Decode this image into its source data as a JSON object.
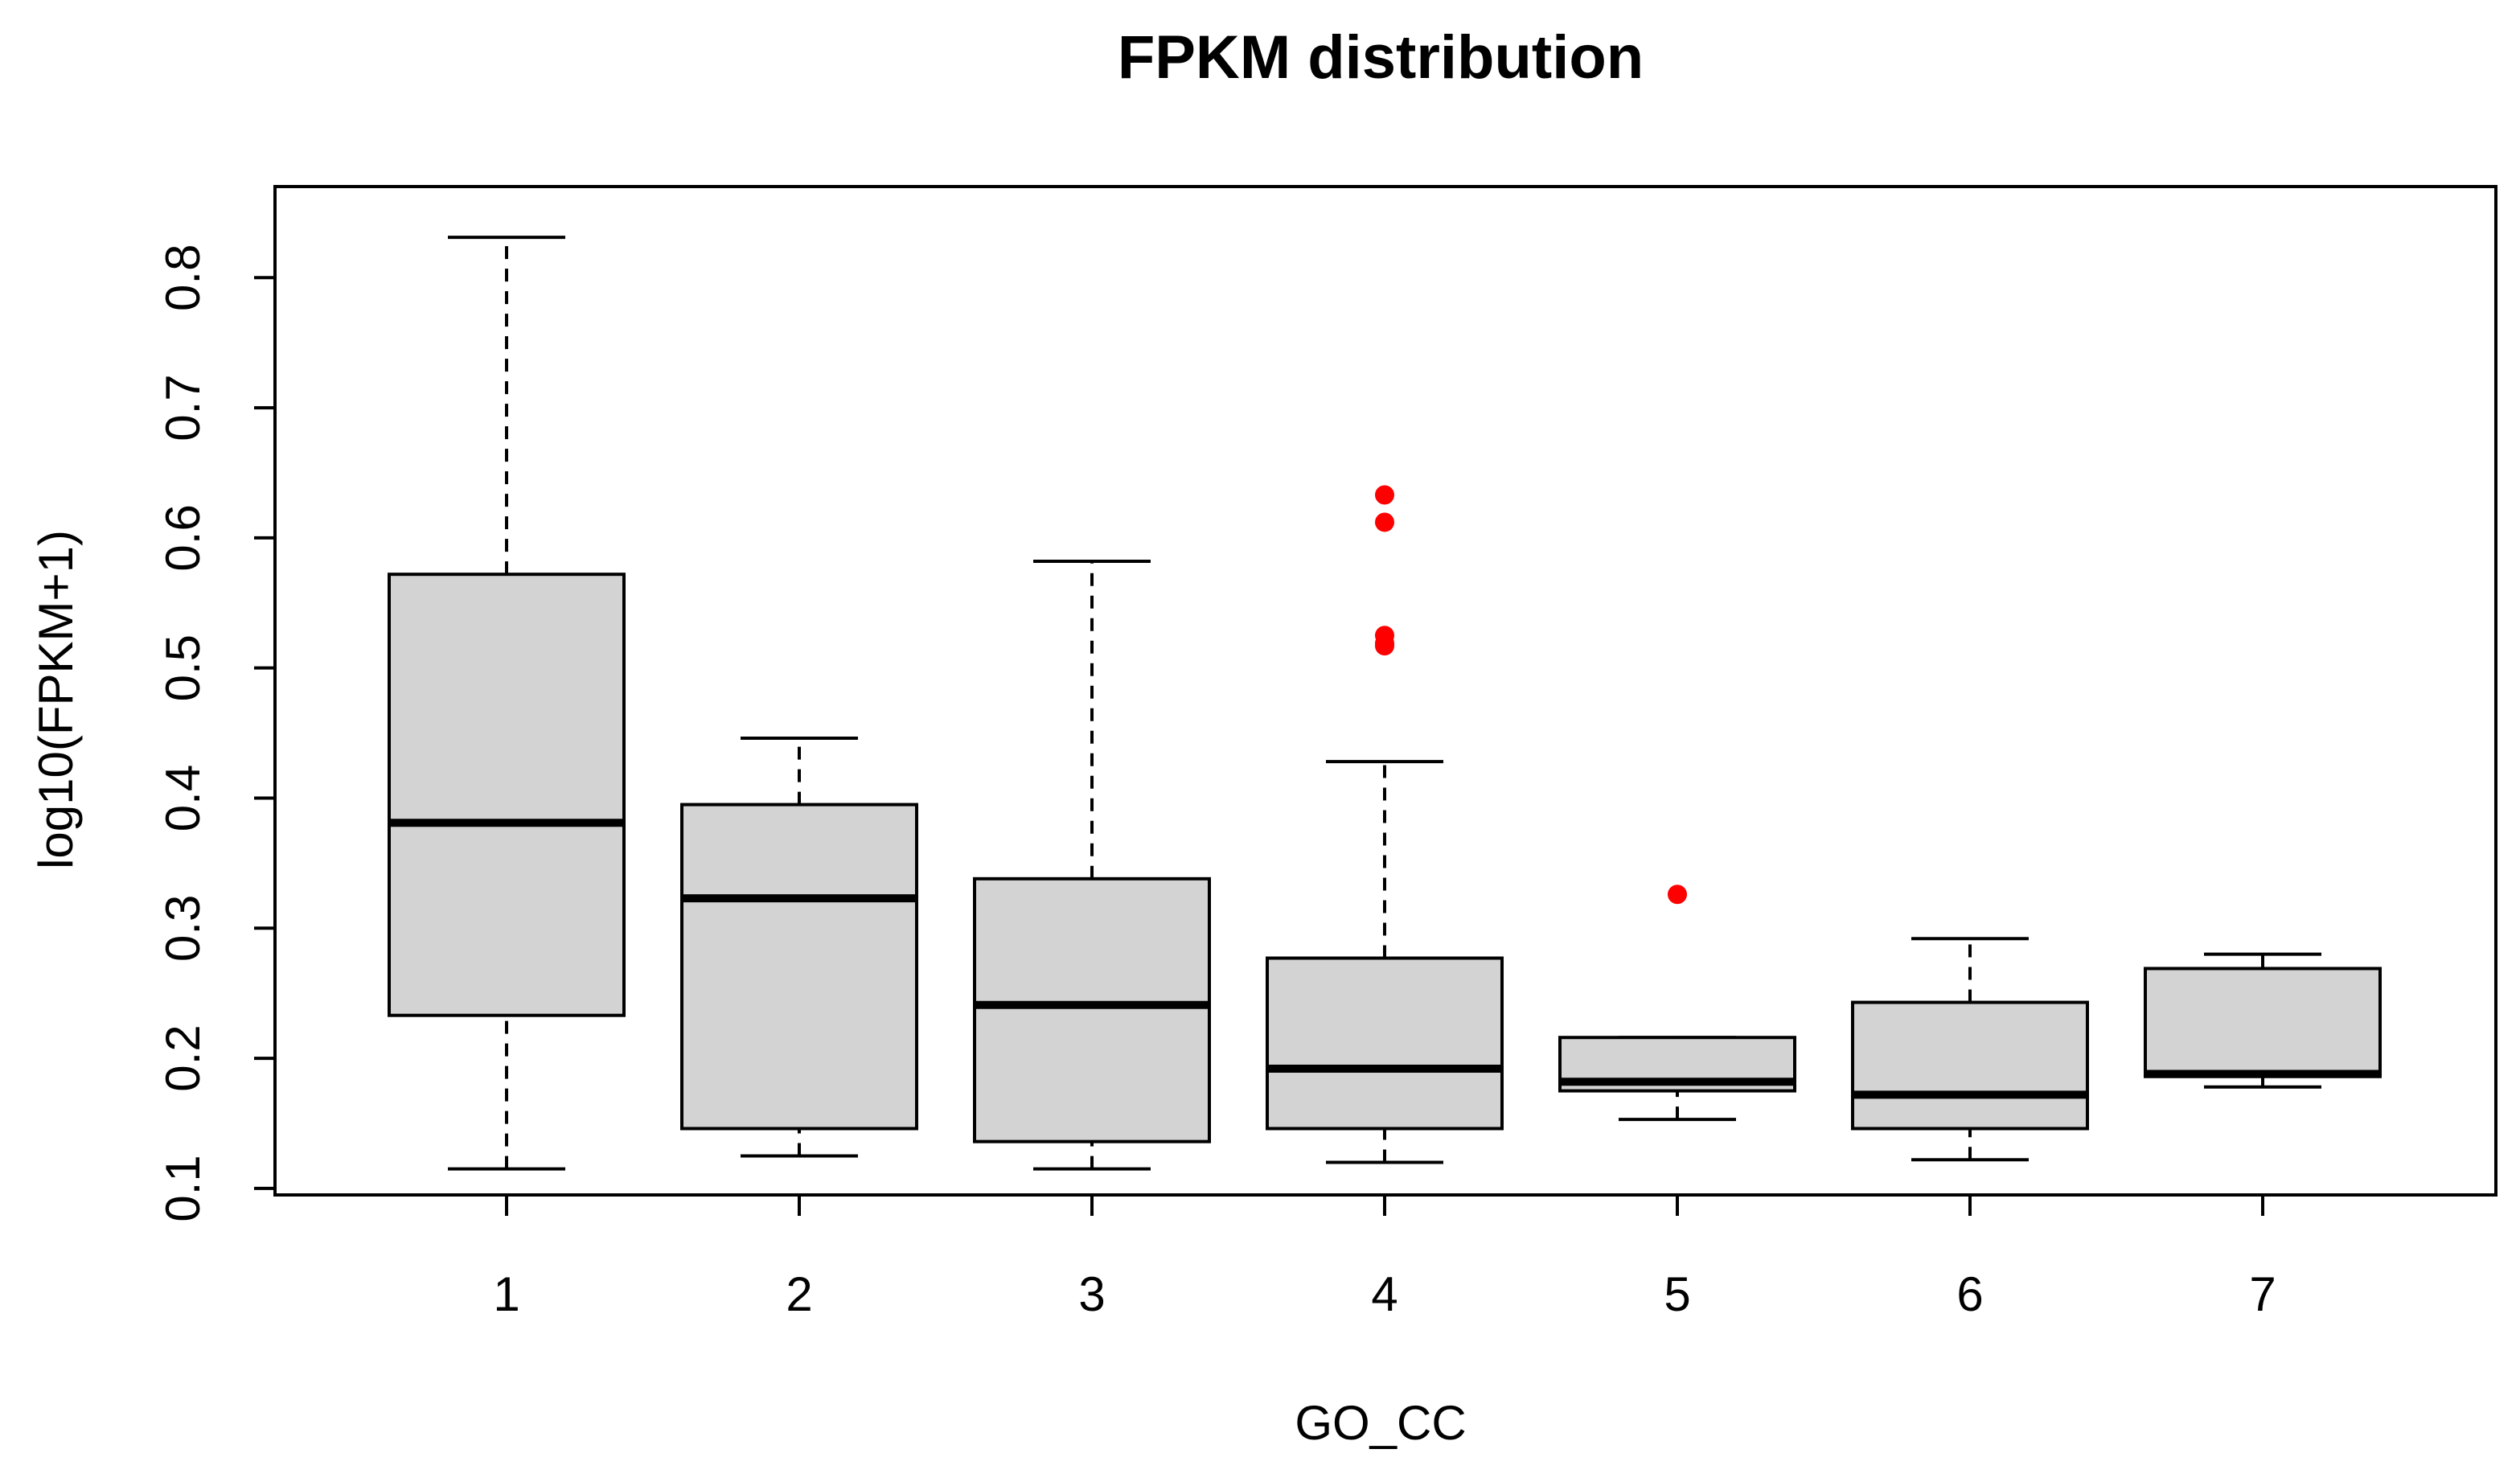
{
  "chart_data": {
    "type": "boxplot",
    "title": "FPKM distribution",
    "xlabel": "GO_CC",
    "ylabel": "log10(FPKM+1)",
    "ylim": [
      0.095,
      0.87
    ],
    "yticks": [
      0.1,
      0.2,
      0.3,
      0.4,
      0.5,
      0.6,
      0.7,
      0.8
    ],
    "ytick_labels": [
      "0.1",
      "0.2",
      "0.3",
      "0.4",
      "0.5",
      "0.6",
      "0.7",
      "0.8"
    ],
    "categories": [
      "1",
      "2",
      "3",
      "4",
      "5",
      "6",
      "7"
    ],
    "box_fill": "#d3d3d3",
    "outlier_color": "#ff0000",
    "boxes": [
      {
        "category": "1",
        "min": 0.115,
        "q1": 0.233,
        "median": 0.381,
        "q3": 0.572,
        "max": 0.831,
        "outliers": []
      },
      {
        "category": "2",
        "min": 0.125,
        "q1": 0.146,
        "median": 0.323,
        "q3": 0.395,
        "max": 0.446,
        "outliers": []
      },
      {
        "category": "3",
        "min": 0.115,
        "q1": 0.136,
        "median": 0.241,
        "q3": 0.338,
        "max": 0.582,
        "outliers": []
      },
      {
        "category": "4",
        "min": 0.12,
        "q1": 0.146,
        "median": 0.192,
        "q3": 0.277,
        "max": 0.428,
        "outliers": [
          0.633,
          0.612,
          0.525,
          0.519,
          0.517
        ]
      },
      {
        "category": "5",
        "min": 0.153,
        "q1": 0.175,
        "median": 0.182,
        "q3": 0.216,
        "max": 0.216,
        "outliers": [
          0.326
        ]
      },
      {
        "category": "6",
        "min": 0.122,
        "q1": 0.146,
        "median": 0.172,
        "q3": 0.243,
        "max": 0.292,
        "outliers": []
      },
      {
        "category": "7",
        "min": 0.178,
        "q1": 0.186,
        "median": 0.188,
        "q3": 0.269,
        "max": 0.28,
        "outliers": []
      }
    ]
  }
}
